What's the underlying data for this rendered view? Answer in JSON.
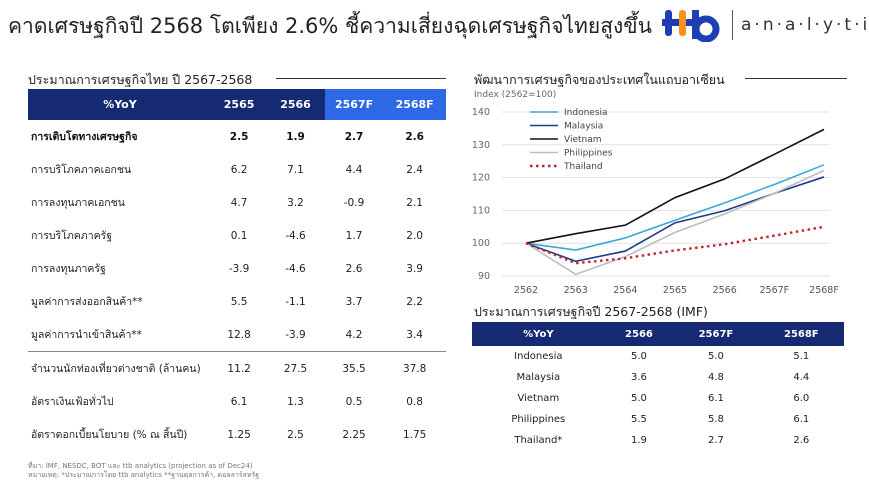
{
  "title": "คาดเศรษฐกิจปี 2568 โตเพียง 2.6% ชี้ความเสี่ยงฉุดเศรษฐกิจไทยสูงขึ้น",
  "logo": {
    "brand": "ttb",
    "text": "analytics",
    "colors": {
      "blue": "#1e3fb4",
      "orange": "#f7921e"
    }
  },
  "left": {
    "title": "ประมาณการเศรษฐกิจไทย ปี 2567-2568",
    "columns": [
      "%YoY",
      "2565",
      "2566",
      "2567F",
      "2568F"
    ],
    "rows": [
      {
        "label": "การเติบโตทางเศรษฐกิจ",
        "values": [
          "2.5",
          "1.9",
          "2.7",
          "2.6"
        ]
      },
      {
        "label": "การบริโภคภาคเอกชน",
        "values": [
          "6.2",
          "7.1",
          "4.4",
          "2.4"
        ]
      },
      {
        "label": "การลงทุนภาคเอกชน",
        "values": [
          "4.7",
          "3.2",
          "-0.9",
          "2.1"
        ]
      },
      {
        "label": "การบริโภคภาครัฐ",
        "values": [
          "0.1",
          "-4.6",
          "1.7",
          "2.0"
        ]
      },
      {
        "label": "การลงทุนภาครัฐ",
        "values": [
          "-3.9",
          "-4.6",
          "2.6",
          "3.9"
        ]
      },
      {
        "label": "มูลค่าการส่งออกสินค้า**",
        "values": [
          "5.5",
          "-1.1",
          "3.7",
          "2.2"
        ]
      },
      {
        "label": "มูลค่าการนำเข้าสินค้า**",
        "values": [
          "12.8",
          "-3.9",
          "4.2",
          "3.4"
        ]
      },
      {
        "label": "จำนวนนักท่องเที่ยวต่างชาติ (ล้านคน)",
        "values": [
          "11.2",
          "27.5",
          "35.5",
          "37.8"
        ]
      },
      {
        "label": "อัตราเงินเฟ้อทั่วไป",
        "values": [
          "6.1",
          "1.3",
          "0.5",
          "0.8"
        ]
      },
      {
        "label": "อัตราดอกเบี้ยนโยบาย (% ณ สิ้นปี)",
        "values": [
          "1.25",
          "2.5",
          "2.25",
          "1.75"
        ]
      }
    ],
    "footnote": [
      "ที่มา: IMF, NESDC, BOT และ ttb analytics (projection as of Dec24)",
      "หมายเหตุ: *ประมาณการโดย ttb analytics **ฐานดุลการค้า, ดอลลาร์สหรัฐ"
    ]
  },
  "chart_data": {
    "type": "line",
    "title": "พัฒนาการเศรษฐกิจของประเทศในแถบอาเซียน",
    "ylabel": "Index (2562=100)",
    "categories": [
      "2562",
      "2563",
      "2564",
      "2565",
      "2566",
      "2567F",
      "2568F"
    ],
    "ylim": [
      90,
      140
    ],
    "yticks": [
      90,
      100,
      110,
      120,
      130,
      140
    ],
    "grid": true,
    "legend": "top-left",
    "series": [
      {
        "name": "Indonesia",
        "color": "#3aa9d8",
        "dash": false,
        "values": [
          100,
          97.9,
          101.6,
          107,
          112.3,
          117.9,
          123.9
        ]
      },
      {
        "name": "Malaysia",
        "color": "#1e3a8a",
        "dash": false,
        "values": [
          100,
          94.5,
          97.6,
          106.2,
          109.9,
          115.2,
          120.2
        ]
      },
      {
        "name": "Vietnam",
        "color": "#111111",
        "dash": false,
        "values": [
          100,
          102.9,
          105.5,
          113.9,
          119.6,
          127.1,
          134.7
        ]
      },
      {
        "name": "Philippines",
        "color": "#bdbdbd",
        "dash": false,
        "values": [
          100,
          90.5,
          95.9,
          103.3,
          108.9,
          115.2,
          122.2
        ]
      },
      {
        "name": "Thailand",
        "color": "#c0262d",
        "dash": true,
        "values": [
          100,
          93.9,
          95.4,
          97.8,
          99.7,
          102.3,
          105
        ]
      }
    ]
  },
  "imf": {
    "title": "ประมาณการเศรษฐกิจปี 2567-2568 (IMF)",
    "columns": [
      "%YoY",
      "2566",
      "2567F",
      "2568F"
    ],
    "rows": [
      {
        "label": "Indonesia",
        "values": [
          "5.0",
          "5.0",
          "5.1"
        ]
      },
      {
        "label": "Malaysia",
        "values": [
          "3.6",
          "4.8",
          "4.4"
        ]
      },
      {
        "label": "Vietnam",
        "values": [
          "5.0",
          "6.1",
          "6.0"
        ]
      },
      {
        "label": "Philippines",
        "values": [
          "5.5",
          "5.8",
          "6.1"
        ]
      },
      {
        "label": "Thailand*",
        "values": [
          "1.9",
          "2.7",
          "2.6"
        ]
      }
    ]
  },
  "colors": {
    "navy": "#162a74",
    "projection_blue": "#2f68e6"
  }
}
